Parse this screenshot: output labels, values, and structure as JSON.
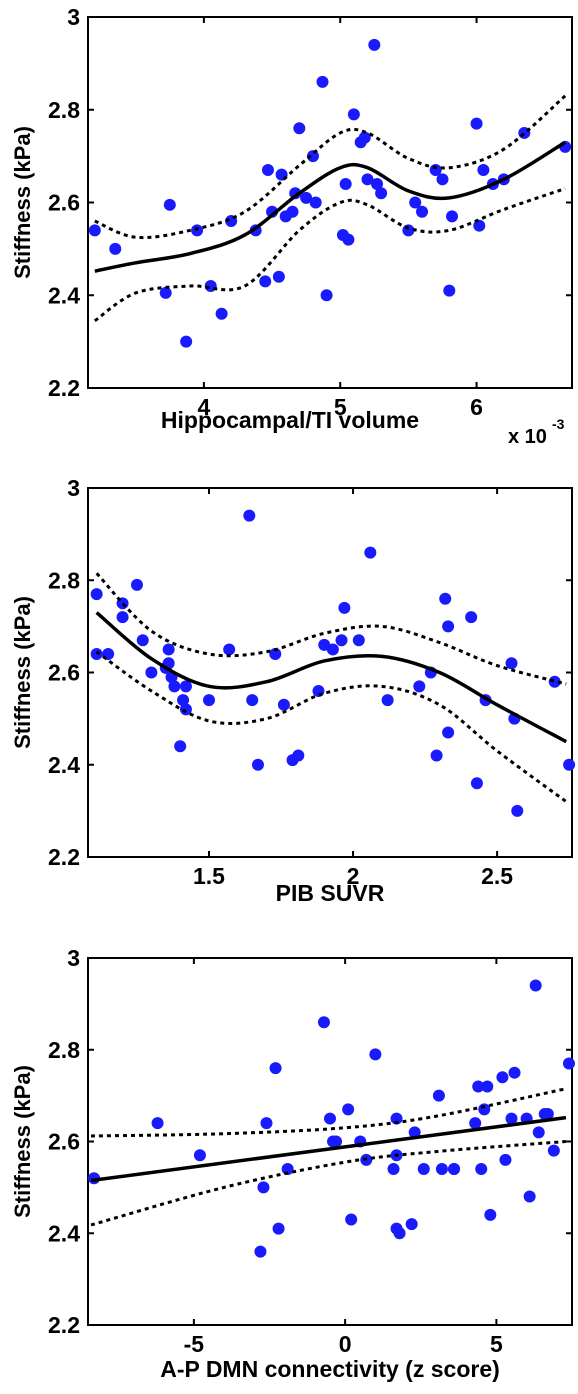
{
  "chart_data": [
    {
      "type": "scatter",
      "xlabel": "Hippocampal/TI volume",
      "ylabel": "Stiffness (kPa)",
      "x_multiplier_label": "x 10",
      "x_multiplier_exponent": "-3",
      "xlim": [
        3.15,
        6.7
      ],
      "ylim": [
        2.2,
        3.0
      ],
      "xticks": [
        4,
        5,
        6
      ],
      "xtick_labels": [
        "4",
        "5",
        "6"
      ],
      "yticks": [
        2.2,
        2.4,
        2.6,
        2.8,
        3.0
      ],
      "ytick_labels": [
        "2.2",
        "2.4",
        "2.6",
        "2.8",
        "3"
      ],
      "grid": false,
      "points": [
        [
          3.2,
          2.54
        ],
        [
          3.35,
          2.5
        ],
        [
          3.72,
          2.405
        ],
        [
          3.75,
          2.595
        ],
        [
          3.87,
          2.3
        ],
        [
          3.95,
          2.54
        ],
        [
          4.05,
          2.42
        ],
        [
          4.13,
          2.36
        ],
        [
          4.2,
          2.56
        ],
        [
          4.38,
          2.54
        ],
        [
          4.45,
          2.43
        ],
        [
          4.47,
          2.67
        ],
        [
          4.5,
          2.58
        ],
        [
          4.55,
          2.44
        ],
        [
          4.57,
          2.66
        ],
        [
          4.6,
          2.57
        ],
        [
          4.65,
          2.58
        ],
        [
          4.67,
          2.62
        ],
        [
          4.7,
          2.76
        ],
        [
          4.75,
          2.61
        ],
        [
          4.8,
          2.7
        ],
        [
          4.82,
          2.6
        ],
        [
          4.87,
          2.86
        ],
        [
          4.9,
          2.4
        ],
        [
          5.02,
          2.53
        ],
        [
          5.04,
          2.64
        ],
        [
          5.06,
          2.52
        ],
        [
          5.1,
          2.79
        ],
        [
          5.15,
          2.73
        ],
        [
          5.18,
          2.74
        ],
        [
          5.2,
          2.65
        ],
        [
          5.25,
          2.94
        ],
        [
          5.27,
          2.64
        ],
        [
          5.3,
          2.62
        ],
        [
          5.5,
          2.54
        ],
        [
          5.55,
          2.6
        ],
        [
          5.6,
          2.58
        ],
        [
          5.7,
          2.67
        ],
        [
          5.75,
          2.65
        ],
        [
          5.8,
          2.41
        ],
        [
          5.82,
          2.57
        ],
        [
          6.0,
          2.77
        ],
        [
          6.02,
          2.55
        ],
        [
          6.05,
          2.67
        ],
        [
          6.12,
          2.64
        ],
        [
          6.2,
          2.65
        ],
        [
          6.35,
          2.75
        ],
        [
          6.65,
          2.72
        ]
      ],
      "fit": [
        [
          3.2,
          2.452
        ],
        [
          3.5,
          2.47
        ],
        [
          3.9,
          2.49
        ],
        [
          4.3,
          2.53
        ],
        [
          4.7,
          2.62
        ],
        [
          5.0,
          2.675
        ],
        [
          5.2,
          2.675
        ],
        [
          5.5,
          2.625
        ],
        [
          5.8,
          2.61
        ],
        [
          6.2,
          2.65
        ],
        [
          6.65,
          2.73
        ]
      ],
      "ci_upper": [
        [
          3.2,
          2.56
        ],
        [
          3.5,
          2.525
        ],
        [
          3.9,
          2.54
        ],
        [
          4.3,
          2.58
        ],
        [
          4.7,
          2.68
        ],
        [
          5.0,
          2.75
        ],
        [
          5.2,
          2.75
        ],
        [
          5.5,
          2.695
        ],
        [
          5.8,
          2.675
        ],
        [
          6.2,
          2.715
        ],
        [
          6.65,
          2.83
        ]
      ],
      "ci_lower": [
        [
          3.2,
          2.345
        ],
        [
          3.5,
          2.405
        ],
        [
          3.9,
          2.42
        ],
        [
          4.3,
          2.42
        ],
        [
          4.7,
          2.54
        ],
        [
          5.0,
          2.6
        ],
        [
          5.2,
          2.595
        ],
        [
          5.5,
          2.545
        ],
        [
          5.8,
          2.54
        ],
        [
          6.2,
          2.585
        ],
        [
          6.65,
          2.63
        ]
      ]
    },
    {
      "type": "scatter",
      "xlabel": "PIB SUVR",
      "ylabel": "Stiffness (kPa)",
      "xlim": [
        1.08,
        2.76
      ],
      "ylim": [
        2.2,
        3.0
      ],
      "xticks": [
        1.5,
        2.0,
        2.5
      ],
      "xtick_labels": [
        "1.5",
        "2",
        "2.5"
      ],
      "yticks": [
        2.2,
        2.4,
        2.6,
        2.8,
        3.0
      ],
      "ytick_labels": [
        "2.2",
        "2.4",
        "2.6",
        "2.8",
        "3"
      ],
      "grid": false,
      "points": [
        [
          1.11,
          2.77
        ],
        [
          1.11,
          2.64
        ],
        [
          1.15,
          2.64
        ],
        [
          1.2,
          2.75
        ],
        [
          1.2,
          2.72
        ],
        [
          1.25,
          2.79
        ],
        [
          1.27,
          2.67
        ],
        [
          1.3,
          2.6
        ],
        [
          1.35,
          2.61
        ],
        [
          1.36,
          2.65
        ],
        [
          1.36,
          2.62
        ],
        [
          1.37,
          2.59
        ],
        [
          1.38,
          2.57
        ],
        [
          1.4,
          2.44
        ],
        [
          1.41,
          2.54
        ],
        [
          1.42,
          2.52
        ],
        [
          1.42,
          2.57
        ],
        [
          1.5,
          2.54
        ],
        [
          1.57,
          2.65
        ],
        [
          1.64,
          2.94
        ],
        [
          1.65,
          2.54
        ],
        [
          1.67,
          2.4
        ],
        [
          1.73,
          2.64
        ],
        [
          1.76,
          2.53
        ],
        [
          1.79,
          2.41
        ],
        [
          1.81,
          2.42
        ],
        [
          1.88,
          2.56
        ],
        [
          1.9,
          2.66
        ],
        [
          1.93,
          2.65
        ],
        [
          1.96,
          2.67
        ],
        [
          1.97,
          2.74
        ],
        [
          2.02,
          2.67
        ],
        [
          2.06,
          2.86
        ],
        [
          2.12,
          2.54
        ],
        [
          2.23,
          2.57
        ],
        [
          2.27,
          2.6
        ],
        [
          2.29,
          2.42
        ],
        [
          2.32,
          2.76
        ],
        [
          2.33,
          2.47
        ],
        [
          2.33,
          2.7
        ],
        [
          2.41,
          2.72
        ],
        [
          2.43,
          2.36
        ],
        [
          2.46,
          2.54
        ],
        [
          2.55,
          2.62
        ],
        [
          2.56,
          2.5
        ],
        [
          2.57,
          2.3
        ],
        [
          2.7,
          2.58
        ],
        [
          2.75,
          2.4
        ]
      ],
      "fit": [
        [
          1.11,
          2.73
        ],
        [
          1.3,
          2.63
        ],
        [
          1.5,
          2.57
        ],
        [
          1.7,
          2.58
        ],
        [
          1.9,
          2.625
        ],
        [
          2.1,
          2.635
        ],
        [
          2.3,
          2.6
        ],
        [
          2.5,
          2.53
        ],
        [
          2.74,
          2.45
        ]
      ],
      "ci_upper": [
        [
          1.11,
          2.815
        ],
        [
          1.3,
          2.69
        ],
        [
          1.5,
          2.64
        ],
        [
          1.7,
          2.645
        ],
        [
          1.9,
          2.685
        ],
        [
          2.1,
          2.7
        ],
        [
          2.3,
          2.665
        ],
        [
          2.5,
          2.615
        ],
        [
          2.74,
          2.575
        ]
      ],
      "ci_lower": [
        [
          1.11,
          2.645
        ],
        [
          1.3,
          2.56
        ],
        [
          1.5,
          2.495
        ],
        [
          1.7,
          2.5
        ],
        [
          1.9,
          2.555
        ],
        [
          2.1,
          2.57
        ],
        [
          2.3,
          2.53
        ],
        [
          2.5,
          2.43
        ],
        [
          2.74,
          2.32
        ]
      ]
    },
    {
      "type": "scatter",
      "xlabel": "A-P DMN connectivity (z score)",
      "ylabel": "Stiffness (kPa)",
      "xlim": [
        -8.5,
        7.5
      ],
      "ylim": [
        2.2,
        3.0
      ],
      "xticks": [
        -5,
        0,
        5
      ],
      "xtick_labels": [
        "-5",
        "0",
        "5"
      ],
      "yticks": [
        2.2,
        2.4,
        2.6,
        2.8,
        3.0
      ],
      "ytick_labels": [
        "2.2",
        "2.4",
        "2.6",
        "2.8",
        "3"
      ],
      "grid": false,
      "points": [
        [
          -8.3,
          2.52
        ],
        [
          -6.2,
          2.64
        ],
        [
          -4.8,
          2.57
        ],
        [
          -2.8,
          2.36
        ],
        [
          -2.7,
          2.5
        ],
        [
          -2.6,
          2.64
        ],
        [
          -2.3,
          2.76
        ],
        [
          -2.2,
          2.41
        ],
        [
          -1.9,
          2.54
        ],
        [
          -0.7,
          2.86
        ],
        [
          -0.5,
          2.65
        ],
        [
          -0.4,
          2.6
        ],
        [
          -0.3,
          2.6
        ],
        [
          0.1,
          2.67
        ],
        [
          0.2,
          2.43
        ],
        [
          0.5,
          2.6
        ],
        [
          0.7,
          2.56
        ],
        [
          1.0,
          2.79
        ],
        [
          1.6,
          2.54
        ],
        [
          1.7,
          2.57
        ],
        [
          1.7,
          2.65
        ],
        [
          1.7,
          2.41
        ],
        [
          1.8,
          2.4
        ],
        [
          2.2,
          2.42
        ],
        [
          2.3,
          2.62
        ],
        [
          2.6,
          2.54
        ],
        [
          3.1,
          2.7
        ],
        [
          3.2,
          2.54
        ],
        [
          3.6,
          2.54
        ],
        [
          3.6,
          2.54
        ],
        [
          4.3,
          2.64
        ],
        [
          4.4,
          2.72
        ],
        [
          4.5,
          2.54
        ],
        [
          4.6,
          2.67
        ],
        [
          4.7,
          2.72
        ],
        [
          4.8,
          2.44
        ],
        [
          5.2,
          2.74
        ],
        [
          5.3,
          2.56
        ],
        [
          5.5,
          2.65
        ],
        [
          5.6,
          2.75
        ],
        [
          6.0,
          2.65
        ],
        [
          6.1,
          2.48
        ],
        [
          6.3,
          2.94
        ],
        [
          6.4,
          2.62
        ],
        [
          6.6,
          2.66
        ],
        [
          6.7,
          2.66
        ],
        [
          6.9,
          2.58
        ],
        [
          7.4,
          2.77
        ]
      ],
      "fit": [
        [
          -8.4,
          2.515
        ],
        [
          7.3,
          2.652
        ]
      ],
      "ci_upper": [
        [
          -8.4,
          2.612
        ],
        [
          -4,
          2.617
        ],
        [
          0,
          2.63
        ],
        [
          3,
          2.655
        ],
        [
          7.3,
          2.715
        ]
      ],
      "ci_lower": [
        [
          -8.4,
          2.418
        ],
        [
          -4,
          2.5
        ],
        [
          0,
          2.555
        ],
        [
          3,
          2.578
        ],
        [
          7.3,
          2.6
        ]
      ]
    }
  ]
}
